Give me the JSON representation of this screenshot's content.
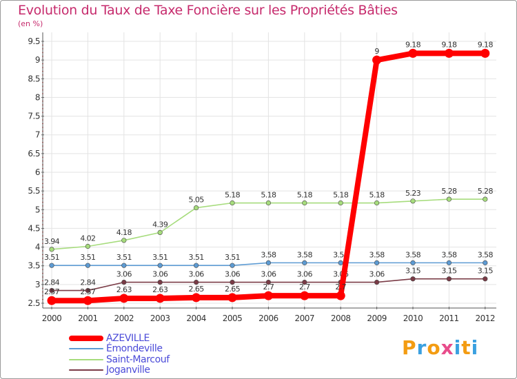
{
  "chart_data": {
    "type": "line",
    "title": "Evolution du Taux de Taxe Foncière sur les Propriétés Bâties",
    "subtitle": "(en %)",
    "xlabel": "",
    "ylabel": "(en %)",
    "categories": [
      "2000",
      "2001",
      "2002",
      "2003",
      "2004",
      "2005",
      "2006",
      "2007",
      "2008",
      "2009",
      "2010",
      "2011",
      "2012"
    ],
    "ylim": [
      2.5,
      9.5
    ],
    "yticks": [
      "2.5",
      "3",
      "3.5",
      "4",
      "4.5",
      "5",
      "5.5",
      "6",
      "6.5",
      "7",
      "7.5",
      "8",
      "8.5",
      "9",
      "9.5"
    ],
    "grid": true,
    "legend_position": "bottom-left",
    "series": [
      {
        "name": "Émondeville",
        "color": "#5d9bd3",
        "values": [
          3.51,
          3.51,
          3.51,
          3.51,
          3.51,
          3.51,
          3.58,
          3.58,
          3.58,
          3.58,
          3.58,
          3.58,
          3.58
        ],
        "labels": [
          "3.51",
          "3.51",
          "3.51",
          "3.51",
          "3.51",
          "3.51",
          "3.58",
          "3.58",
          "3.58",
          "3.58",
          "3.58",
          "3.58",
          "3.58"
        ]
      },
      {
        "name": "Saint-Marcouf",
        "color": "#a6dc7c",
        "values": [
          3.94,
          4.02,
          4.18,
          4.39,
          5.05,
          5.18,
          5.18,
          5.18,
          5.18,
          5.18,
          5.23,
          5.28,
          5.28
        ],
        "labels": [
          "3.94",
          "4.02",
          "4.18",
          "4.39",
          "5.05",
          "5.18",
          "5.18",
          "5.18",
          "5.18",
          "5.18",
          "5.23",
          "5.28",
          "5.28"
        ]
      },
      {
        "name": "Joganville",
        "color": "#7a3b46",
        "values": [
          2.84,
          2.84,
          3.06,
          3.06,
          3.06,
          3.06,
          3.06,
          3.06,
          3.06,
          3.06,
          3.15,
          3.15,
          3.15
        ],
        "labels": [
          "2.84",
          "2.84",
          "3.06",
          "3.06",
          "3.06",
          "3.06",
          "3.06",
          "3.06",
          "3.06",
          "3.06",
          "3.15",
          "3.15",
          "3.15"
        ]
      },
      {
        "name": "AZEVILLE",
        "color": "#ff0000",
        "values": [
          2.57,
          2.57,
          2.63,
          2.63,
          2.65,
          2.65,
          2.7,
          2.7,
          2.7,
          9,
          9.18,
          9.18,
          9.18
        ],
        "labels": [
          "2.57",
          "2.57",
          "2.63",
          "2.63",
          "2.65",
          "2.65",
          "2.7",
          "2.7",
          "2.7",
          "9",
          "9.18",
          "9.18",
          "9.18"
        ],
        "emphasis": true
      }
    ],
    "legend": [
      "AZEVILLE",
      "Émondeville",
      "Saint-Marcouf",
      "Joganville"
    ]
  },
  "brand": {
    "logo_text": "Proxiti",
    "colors": [
      "#f39c12",
      "#3aa0e0",
      "#f39c12",
      "#e84c8b",
      "#3aa0e0",
      "#f39c12",
      "#3aa0e0"
    ]
  }
}
